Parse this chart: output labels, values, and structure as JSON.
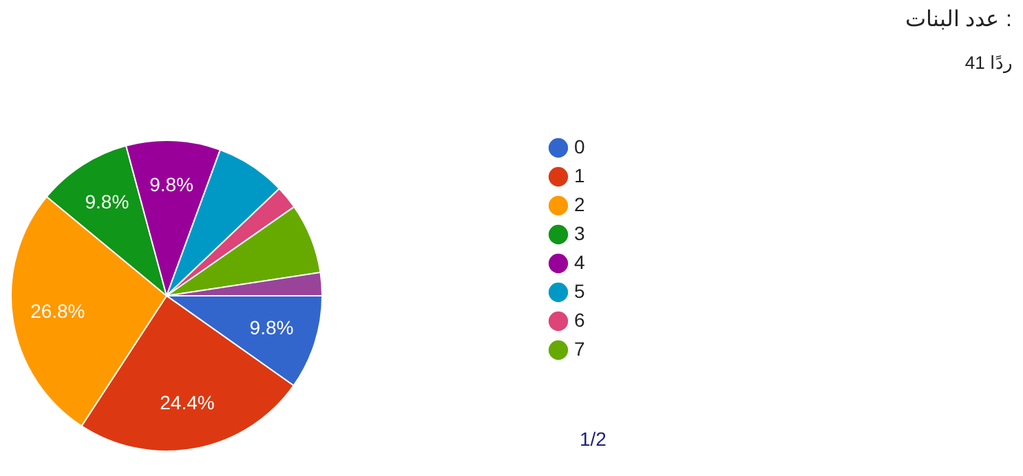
{
  "chart_data": {
    "type": "pie",
    "title": "عدد البنات :",
    "subtitle": "41 ردًا",
    "categories": [
      "0",
      "1",
      "2",
      "3",
      "4",
      "5",
      "6",
      "7",
      null
    ],
    "values": [
      9.8,
      24.4,
      26.8,
      9.8,
      9.8,
      7.3,
      2.4,
      7.3,
      2.4
    ],
    "colors": [
      "#3366cc",
      "#dc3912",
      "#ff9900",
      "#109618",
      "#990099",
      "#0099c6",
      "#dd4477",
      "#66aa00",
      "#994499"
    ],
    "value_labels": [
      "9.8%",
      "24.4%",
      "26.8%",
      "9.8%",
      "9.8%",
      null,
      null,
      null,
      null
    ],
    "legend": "right",
    "annotations": [
      "1/2"
    ]
  }
}
